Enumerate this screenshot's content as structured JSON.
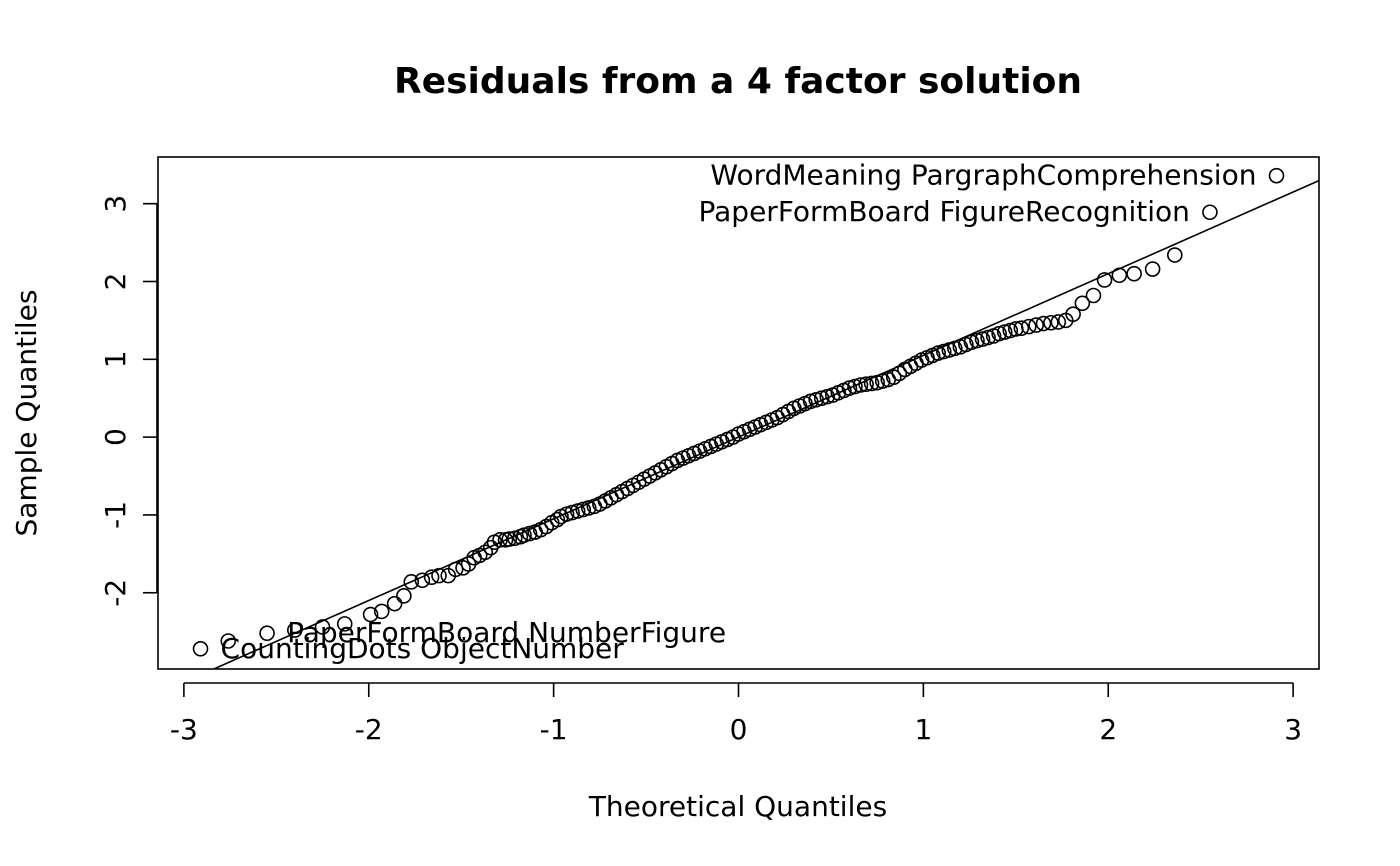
{
  "chart_data": {
    "type": "scatter",
    "title": "Residuals from a 4 factor solution",
    "xlabel": "Theoretical Quantiles",
    "ylabel": "Sample Quantiles",
    "xlim": [
      -3.14,
      3.14
    ],
    "ylim": [
      -2.98,
      3.6
    ],
    "x_ticks": [
      {
        "value": -3,
        "label": "-3"
      },
      {
        "value": -2,
        "label": "-2"
      },
      {
        "value": -1,
        "label": "-1"
      },
      {
        "value": 0,
        "label": "0"
      },
      {
        "value": 1,
        "label": "1"
      },
      {
        "value": 2,
        "label": "2"
      },
      {
        "value": 3,
        "label": "3"
      }
    ],
    "y_ticks": [
      {
        "value": -2,
        "label": "-2"
      },
      {
        "value": -1,
        "label": "-1"
      },
      {
        "value": 0,
        "label": "0"
      },
      {
        "value": 1,
        "label": "1"
      },
      {
        "value": 2,
        "label": "2"
      },
      {
        "value": 3,
        "label": "3"
      }
    ],
    "grid": false,
    "reference_line": {
      "intercept": 0.0,
      "slope": 1.05
    },
    "points": [
      [
        -2.91,
        -2.72
      ],
      [
        -2.76,
        -2.62
      ],
      [
        -2.55,
        -2.52
      ],
      [
        -2.4,
        -2.48
      ],
      [
        -2.25,
        -2.44
      ],
      [
        -2.13,
        -2.4
      ],
      [
        -1.99,
        -2.28
      ],
      [
        -1.93,
        -2.24
      ],
      [
        -1.86,
        -2.14
      ],
      [
        -1.81,
        -2.04
      ],
      [
        -1.77,
        -1.86
      ],
      [
        -1.71,
        -1.84
      ],
      [
        -1.66,
        -1.8
      ],
      [
        -1.62,
        -1.78
      ],
      [
        -1.57,
        -1.78
      ],
      [
        -1.53,
        -1.7
      ],
      [
        -1.49,
        -1.68
      ],
      [
        -1.46,
        -1.63
      ],
      [
        -1.43,
        -1.55
      ],
      [
        -1.4,
        -1.52
      ],
      [
        -1.37,
        -1.48
      ],
      [
        -1.34,
        -1.42
      ],
      [
        -1.32,
        -1.35
      ],
      [
        -1.29,
        -1.32
      ],
      [
        -1.26,
        -1.32
      ],
      [
        -1.24,
        -1.31
      ],
      [
        -1.21,
        -1.3
      ],
      [
        -1.18,
        -1.28
      ],
      [
        -1.16,
        -1.26
      ],
      [
        -1.13,
        -1.24
      ],
      [
        -1.1,
        -1.22
      ],
      [
        -1.07,
        -1.19
      ],
      [
        -1.04,
        -1.15
      ],
      [
        -1.01,
        -1.1
      ],
      [
        -0.98,
        -1.06
      ],
      [
        -0.96,
        -1.02
      ],
      [
        -0.93,
        -0.99
      ],
      [
        -0.9,
        -0.97
      ],
      [
        -0.87,
        -0.95
      ],
      [
        -0.84,
        -0.93
      ],
      [
        -0.81,
        -0.91
      ],
      [
        -0.78,
        -0.89
      ],
      [
        -0.75,
        -0.86
      ],
      [
        -0.72,
        -0.82
      ],
      [
        -0.69,
        -0.78
      ],
      [
        -0.66,
        -0.74
      ],
      [
        -0.63,
        -0.7
      ],
      [
        -0.6,
        -0.66
      ],
      [
        -0.57,
        -0.62
      ],
      [
        -0.54,
        -0.58
      ],
      [
        -0.51,
        -0.54
      ],
      [
        -0.48,
        -0.5
      ],
      [
        -0.45,
        -0.46
      ],
      [
        -0.42,
        -0.42
      ],
      [
        -0.39,
        -0.38
      ],
      [
        -0.36,
        -0.34
      ],
      [
        -0.33,
        -0.3
      ],
      [
        -0.3,
        -0.27
      ],
      [
        -0.27,
        -0.24
      ],
      [
        -0.24,
        -0.21
      ],
      [
        -0.21,
        -0.18
      ],
      [
        -0.18,
        -0.15
      ],
      [
        -0.15,
        -0.12
      ],
      [
        -0.12,
        -0.09
      ],
      [
        -0.09,
        -0.06
      ],
      [
        -0.06,
        -0.03
      ],
      [
        -0.03,
        0.0
      ],
      [
        0.0,
        0.04
      ],
      [
        0.03,
        0.07
      ],
      [
        0.06,
        0.1
      ],
      [
        0.09,
        0.13
      ],
      [
        0.12,
        0.16
      ],
      [
        0.15,
        0.19
      ],
      [
        0.18,
        0.22
      ],
      [
        0.21,
        0.25
      ],
      [
        0.24,
        0.29
      ],
      [
        0.27,
        0.33
      ],
      [
        0.3,
        0.37
      ],
      [
        0.33,
        0.4
      ],
      [
        0.36,
        0.43
      ],
      [
        0.39,
        0.46
      ],
      [
        0.42,
        0.48
      ],
      [
        0.45,
        0.5
      ],
      [
        0.48,
        0.52
      ],
      [
        0.51,
        0.54
      ],
      [
        0.54,
        0.57
      ],
      [
        0.57,
        0.6
      ],
      [
        0.6,
        0.63
      ],
      [
        0.63,
        0.65
      ],
      [
        0.66,
        0.67
      ],
      [
        0.69,
        0.68
      ],
      [
        0.72,
        0.69
      ],
      [
        0.75,
        0.7
      ],
      [
        0.78,
        0.72
      ],
      [
        0.81,
        0.74
      ],
      [
        0.84,
        0.77
      ],
      [
        0.87,
        0.82
      ],
      [
        0.9,
        0.87
      ],
      [
        0.93,
        0.91
      ],
      [
        0.96,
        0.95
      ],
      [
        0.99,
        0.99
      ],
      [
        1.02,
        1.02
      ],
      [
        1.05,
        1.05
      ],
      [
        1.08,
        1.08
      ],
      [
        1.11,
        1.1
      ],
      [
        1.14,
        1.12
      ],
      [
        1.17,
        1.14
      ],
      [
        1.2,
        1.16
      ],
      [
        1.23,
        1.19
      ],
      [
        1.26,
        1.22
      ],
      [
        1.29,
        1.24
      ],
      [
        1.32,
        1.26
      ],
      [
        1.35,
        1.28
      ],
      [
        1.38,
        1.3
      ],
      [
        1.41,
        1.33
      ],
      [
        1.44,
        1.35
      ],
      [
        1.47,
        1.37
      ],
      [
        1.5,
        1.39
      ],
      [
        1.53,
        1.4
      ],
      [
        1.57,
        1.42
      ],
      [
        1.61,
        1.44
      ],
      [
        1.65,
        1.46
      ],
      [
        1.69,
        1.47
      ],
      [
        1.73,
        1.48
      ],
      [
        1.77,
        1.5
      ],
      [
        1.81,
        1.58
      ],
      [
        1.86,
        1.72
      ],
      [
        1.92,
        1.82
      ],
      [
        1.98,
        2.02
      ],
      [
        2.06,
        2.08
      ],
      [
        2.14,
        2.1
      ],
      [
        2.24,
        2.16
      ],
      [
        2.36,
        2.34
      ],
      [
        2.55,
        2.89
      ],
      [
        2.91,
        3.36
      ]
    ],
    "annotations": [
      {
        "text": "WordMeaning PargraphComprehension",
        "x": 2.91,
        "y": 3.36,
        "anchor": "left"
      },
      {
        "text": "PaperFormBoard FigureRecognition",
        "x": 2.55,
        "y": 2.89,
        "anchor": "left"
      },
      {
        "text": "PaperFormBoard NumberFigure",
        "x": -2.55,
        "y": -2.52,
        "anchor": "right"
      },
      {
        "text": "CountingDots ObjectNumber",
        "x": -2.91,
        "y": -2.72,
        "anchor": "right"
      }
    ]
  }
}
